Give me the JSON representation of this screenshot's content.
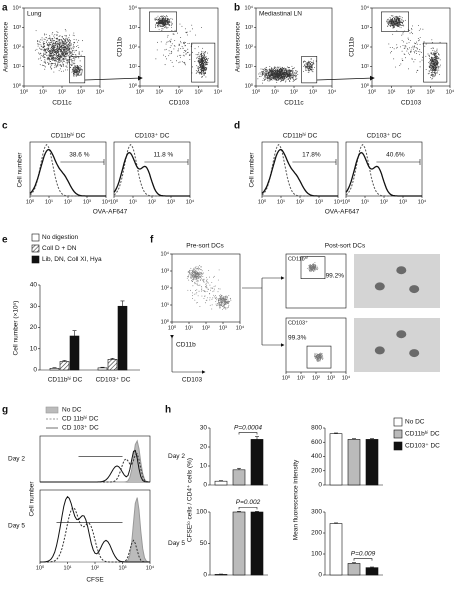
{
  "log_ticks": [
    {
      "value": 1,
      "label": "10⁰"
    },
    {
      "value": 10,
      "label": "10¹"
    },
    {
      "value": 100,
      "label": "10²"
    },
    {
      "value": 1000,
      "label": "10³"
    },
    {
      "value": 10000,
      "label": "10⁴"
    }
  ],
  "a": {
    "label": "a",
    "tissue": "Lung",
    "xlabel_1": "CD11c",
    "ylabel_1": "Autofluorescence",
    "xlabel_2": "CD103",
    "ylabel_2": "CD11b"
  },
  "b": {
    "label": "b",
    "tissue": "Mediastinal LN",
    "xlabel_1": "CD11c",
    "ylabel_1": "Autofluorescence",
    "xlabel_2": "CD103",
    "ylabel_2": "CD11b"
  },
  "c": {
    "label": "c",
    "xlabel": "OVA-AF647",
    "ylabel": "Cell number",
    "plots": [
      {
        "title": "CD11bʰⁱ DC",
        "gate": "38.6 %"
      },
      {
        "title": "CD103⁺ DC",
        "gate": "11.8 %"
      }
    ]
  },
  "d": {
    "label": "d",
    "xlabel": "OVA-AF647",
    "ylabel": "Cell number",
    "plots": [
      {
        "title": "CD11bʰⁱ DC",
        "gate": "17.8%"
      },
      {
        "title": "CD103⁺ DC",
        "gate": "40.6%"
      }
    ]
  },
  "e": {
    "label": "e",
    "type": "bar",
    "ylabel": "Cell number (×10⁵)",
    "ylim": [
      0,
      40
    ],
    "yticks": [
      0,
      10,
      20,
      30,
      40
    ],
    "categories": [
      "CD11bʰⁱ DC",
      "CD103⁺ DC"
    ],
    "series": [
      {
        "name": "No digestion",
        "color": "#ffffff",
        "values": [
          0.8,
          1
        ],
        "errors": [
          0.3,
          0.3
        ]
      },
      {
        "name": "Coll D + DN",
        "color": "#bbbbbb",
        "pattern": "hatch",
        "values": [
          4,
          5
        ],
        "errors": [
          0.5,
          0.5
        ]
      },
      {
        "name": "Lib, DN, Coll XI, Hya",
        "color": "#111111",
        "values": [
          16,
          30
        ],
        "errors": [
          2.5,
          2.5
        ]
      }
    ]
  },
  "f": {
    "label": "f",
    "pre_title": "Pre-sort DCs",
    "post_title": "Post-sort DCs",
    "xlabel": "CD103",
    "ylabel": "CD11b",
    "gates": [
      {
        "name": "CD11bʰⁱ",
        "pct": "99.2%"
      },
      {
        "name": "CD103⁺",
        "pct": "99.3%"
      }
    ]
  },
  "g": {
    "label": "g",
    "legend": [
      "No DC",
      "CD 11bʰⁱ DC",
      "CD 103⁺ DC"
    ],
    "days": [
      "Day 2",
      "Day 5"
    ],
    "xlabel": "CFSE",
    "ylabel": "Cell number"
  },
  "h": {
    "label": "h",
    "type": "bar",
    "categories": [
      "No DC",
      "CD11bʰⁱ DC",
      "CD103⁺ DC"
    ],
    "colors": [
      "#ffffff",
      "#bbbbbb",
      "#111111"
    ],
    "left_ylabel": "CFSEˡᵒ cells / CD4⁺ cells (%)",
    "right_ylabel": "Mean fluorescence intensity",
    "rows": [
      {
        "day": "Day 2",
        "left": {
          "ylim": [
            0,
            30
          ],
          "yticks": [
            0,
            10,
            20,
            30
          ],
          "values": [
            2,
            8,
            24
          ],
          "errors": [
            0.3,
            0.8,
            1.5
          ],
          "p": "P=0.0004"
        },
        "right": {
          "ylim": [
            0,
            800
          ],
          "yticks": [
            0,
            200,
            400,
            600,
            800
          ],
          "values": [
            720,
            640,
            640
          ],
          "errors": [
            10,
            10,
            10
          ]
        }
      },
      {
        "day": "Day 5",
        "left": {
          "ylim": [
            0,
            100
          ],
          "yticks": [
            0,
            50,
            100
          ],
          "values": [
            1,
            100,
            100
          ],
          "errors": [
            0.5,
            1,
            1
          ],
          "p": "P=0.002"
        },
        "right": {
          "ylim": [
            0,
            300
          ],
          "yticks": [
            0,
            100,
            200,
            300
          ],
          "values": [
            245,
            55,
            35
          ],
          "errors": [
            3,
            4,
            3
          ],
          "p": "P=0.009"
        }
      }
    ]
  }
}
